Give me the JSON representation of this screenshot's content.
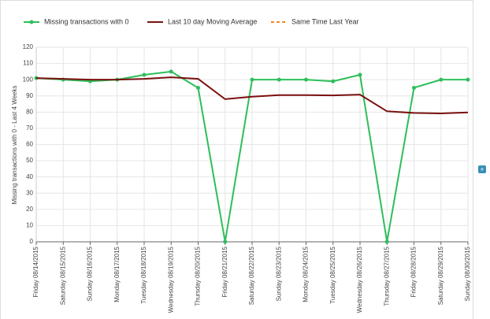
{
  "chart_data": {
    "type": "line",
    "y_label": "Missing transactions with 0 - Last 4 Weeks",
    "categories": [
      "Friday 08/14/2015",
      "Saturday 08/15/2015",
      "Sunday 08/16/2015",
      "Monday 08/17/2015",
      "Tuesday 08/18/2015",
      "Wednesday 08/19/2015",
      "Thursday 08/20/2015",
      "Friday 08/21/2015",
      "Saturday 08/22/2015",
      "Sunday 08/23/2015",
      "Monday 08/24/2015",
      "Tuesday 08/25/2015",
      "Wednesday 08/26/2015",
      "Thursday 08/27/2015",
      "Friday 08/28/2015",
      "Saturday 08/29/2015",
      "Sunday 08/30/2015"
    ],
    "series": [
      {
        "name": "Missing transactions with 0",
        "color": "#2dbe5a",
        "markers": true,
        "values": [
          101,
          100,
          99,
          100,
          103,
          105,
          95,
          0,
          100,
          100,
          100,
          99,
          103,
          0,
          95,
          100,
          100
        ]
      },
      {
        "name": "Last 10 day Moving Average",
        "color": "#7b1010",
        "values": [
          101,
          100.5,
          100,
          100,
          100.5,
          101.5,
          100.5,
          88,
          89.5,
          90.5,
          90.5,
          90.3,
          90.8,
          80.5,
          79.5,
          79.2,
          79.8
        ]
      },
      {
        "name": "Same Time Last Year",
        "color": "#f08a24",
        "dashed": true,
        "values": [
          null,
          null,
          null,
          null,
          null,
          null,
          null,
          null,
          null,
          null,
          null,
          null,
          null,
          null,
          null,
          null,
          null
        ]
      }
    ],
    "ylim": [
      0,
      120
    ],
    "yticks": [
      0,
      10,
      20,
      30,
      40,
      50,
      60,
      70,
      80,
      90,
      100,
      110,
      120
    ],
    "grid": true
  }
}
